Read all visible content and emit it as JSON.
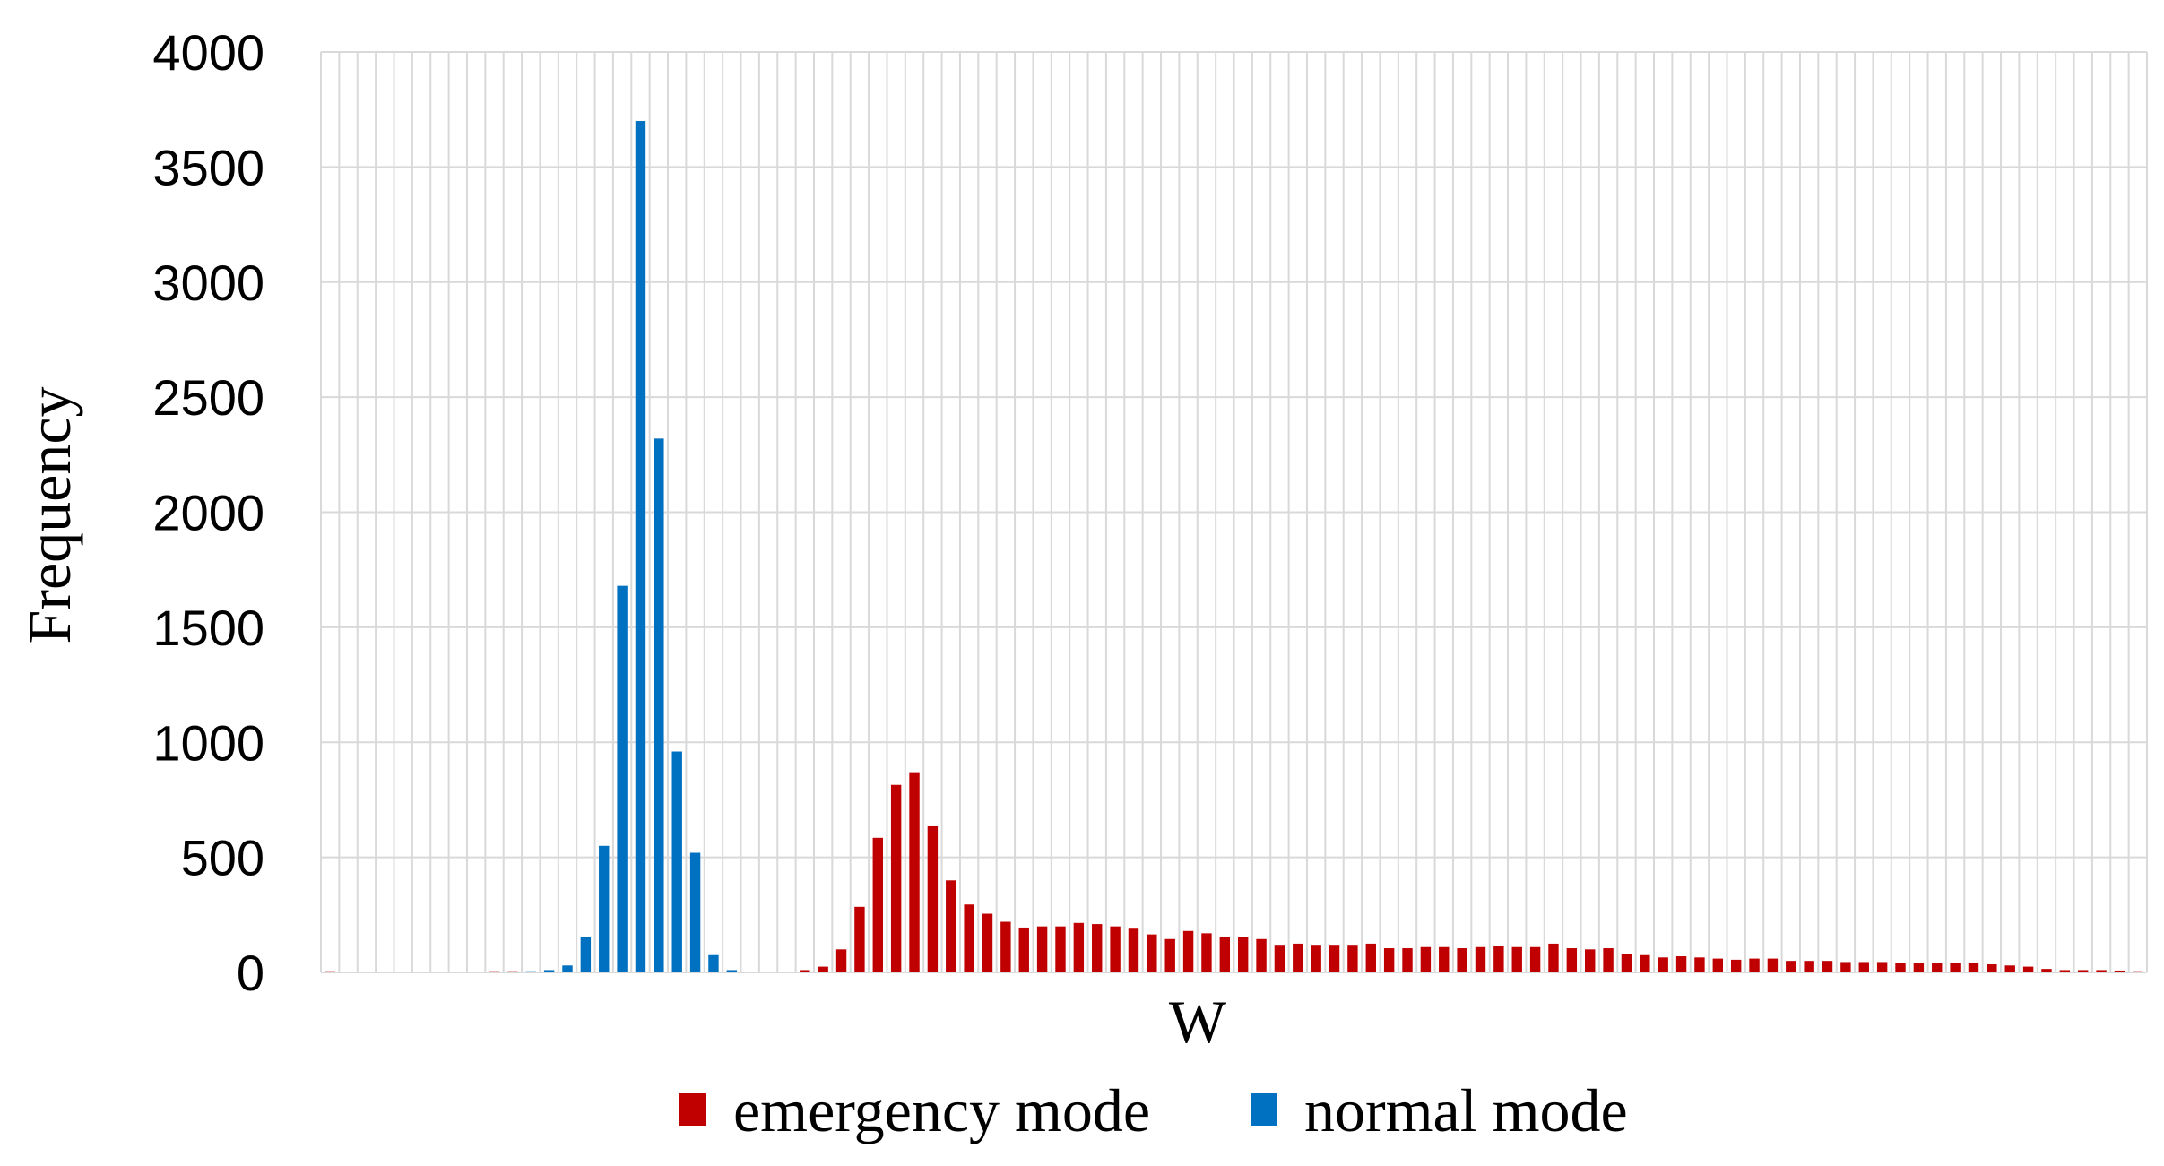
{
  "chart_data": {
    "type": "bar",
    "title": "",
    "xlabel": "W",
    "ylabel": "Frequency",
    "ylim": [
      0,
      4000
    ],
    "yticks": [
      "0",
      "500",
      "1000",
      "1500",
      "2000",
      "2500",
      "3000",
      "3500",
      "4000"
    ],
    "grid": true,
    "legend_position": "bottom",
    "x_tick_labels_shown": false,
    "bin_count": 100,
    "series": [
      {
        "name": "emergency mode",
        "color": "#c00000",
        "values": [
          5,
          0,
          0,
          0,
          0,
          0,
          0,
          0,
          0,
          5,
          5,
          0,
          0,
          0,
          0,
          0,
          0,
          0,
          0,
          0,
          0,
          0,
          0,
          0,
          0,
          0,
          10,
          25,
          100,
          285,
          585,
          815,
          870,
          635,
          400,
          295,
          255,
          220,
          195,
          200,
          200,
          215,
          210,
          200,
          190,
          165,
          145,
          180,
          170,
          155,
          155,
          145,
          120,
          125,
          120,
          120,
          120,
          125,
          105,
          105,
          110,
          110,
          105,
          110,
          115,
          110,
          110,
          125,
          105,
          100,
          105,
          80,
          75,
          65,
          70,
          65,
          60,
          55,
          60,
          60,
          50,
          50,
          50,
          45,
          45,
          45,
          40,
          40,
          40,
          40,
          40,
          35,
          30,
          25,
          15,
          10,
          10,
          10,
          8,
          5
        ]
      },
      {
        "name": "normal mode",
        "color": "#0070c0",
        "values": [
          0,
          0,
          0,
          0,
          0,
          0,
          0,
          0,
          0,
          0,
          0,
          5,
          10,
          30,
          155,
          550,
          1680,
          3700,
          2320,
          960,
          520,
          75,
          10,
          0,
          0,
          0,
          0,
          0,
          0,
          0,
          0,
          0,
          0,
          0,
          0,
          0,
          0,
          0,
          0,
          0,
          0,
          0,
          0,
          0,
          0,
          0,
          0,
          0,
          0,
          0,
          0,
          0,
          0,
          0,
          0,
          0,
          0,
          0,
          0,
          0,
          0,
          0,
          0,
          0,
          0,
          0,
          0,
          0,
          0,
          0,
          0,
          0,
          0,
          0,
          0,
          0,
          0,
          0,
          0,
          0,
          0,
          0,
          0,
          0,
          0,
          0,
          0,
          0,
          0,
          0,
          0,
          0,
          0,
          0,
          0,
          0,
          0,
          0,
          0,
          0
        ]
      }
    ]
  }
}
